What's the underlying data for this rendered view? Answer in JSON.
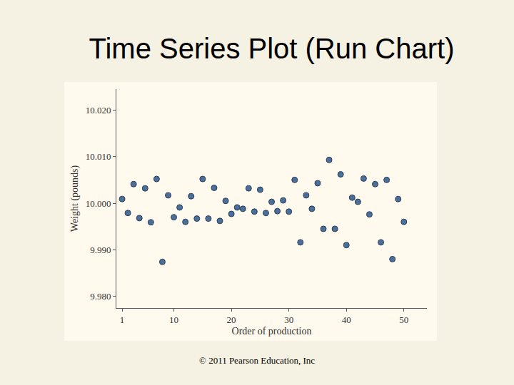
{
  "chart_data": {
    "type": "scatter",
    "title": "Time Series Plot (Run Chart)",
    "xlabel": "Order of production",
    "ylabel": "Weight (pounds)",
    "annotations": [
      "© 2011 Pearson Education, Inc"
    ],
    "x": [
      1,
      2,
      3,
      4,
      5,
      6,
      7,
      8,
      9,
      10,
      11,
      12,
      13,
      14,
      15,
      16,
      17,
      18,
      19,
      20,
      21,
      22,
      23,
      24,
      25,
      26,
      27,
      28,
      29,
      30,
      31,
      32,
      33,
      34,
      35,
      36,
      37,
      38,
      39,
      40,
      41,
      42,
      43,
      44,
      45,
      46,
      47,
      48,
      49,
      50
    ],
    "values": [
      10.0009,
      9.9979,
      10.0041,
      9.9968,
      10.0032,
      9.9959,
      10.0052,
      9.9874,
      10.0017,
      9.997,
      9.9991,
      9.996,
      10.0015,
      9.9967,
      10.0052,
      9.9967,
      10.0033,
      9.9962,
      10.0005,
      9.9977,
      9.9991,
      9.9988,
      10.0032,
      9.9982,
      10.0029,
      9.9979,
      10.0003,
      9.9983,
      10.0006,
      9.9982,
      10.005,
      9.9916,
      10.0017,
      9.9988,
      10.0043,
      9.9945,
      10.0093,
      9.9945,
      10.0062,
      9.991,
      10.0012,
      10.0003,
      10.0053,
      9.9976,
      10.0041,
      9.9916,
      10.005,
      9.988,
      10.0009,
      9.996
    ],
    "color": "#4a6f9a",
    "marker": "circle",
    "xlim": [
      0,
      54
    ],
    "xticks": [
      1,
      10,
      20,
      30,
      40,
      50
    ],
    "ylim": [
      9.9775,
      10.0245
    ],
    "yticks": [
      {
        "value": 9.98,
        "label": "9.980"
      },
      {
        "value": 9.99,
        "label": "9.990"
      },
      {
        "value": 10.0,
        "label": "10.000"
      },
      {
        "value": 10.01,
        "label": "10.010"
      },
      {
        "value": 10.02,
        "label": "10.020"
      }
    ],
    "grid": false
  }
}
